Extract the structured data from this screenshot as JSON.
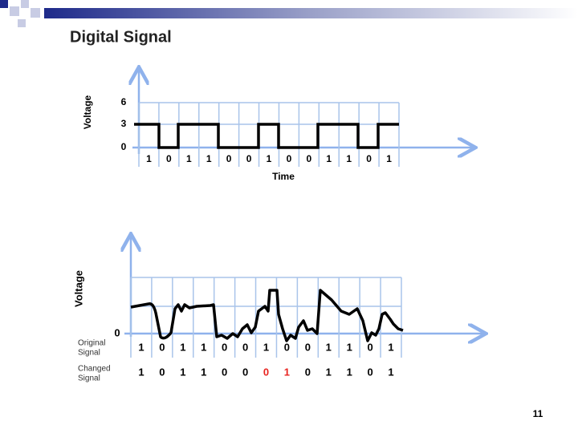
{
  "title": "Digital Signal",
  "top_diagram": {
    "y_axis_label": "Voltage",
    "ticks": [
      "6",
      "3",
      "0"
    ],
    "bits": [
      "1",
      "0",
      "1",
      "1",
      "0",
      "0",
      "1",
      "0",
      "0",
      "1",
      "1",
      "0",
      "1"
    ],
    "x_axis_label": "Time"
  },
  "bottom_diagram": {
    "y_axis_label": "Voltage",
    "tick": "0",
    "original_label": [
      "Original",
      "Signal"
    ],
    "original_bits": [
      "1",
      "0",
      "1",
      "1",
      "0",
      "0",
      "1",
      "0",
      "0",
      "1",
      "1",
      "0",
      "1"
    ],
    "changed_label": [
      "Changed",
      "Signal"
    ],
    "changed_bits": [
      "1",
      "0",
      "1",
      "1",
      "0",
      "0",
      "0",
      "1",
      "0",
      "1",
      "1",
      "0",
      "1"
    ],
    "highlighted_bits": [
      6,
      7
    ],
    "highlight_color": "#e8231f"
  },
  "page_number": "11"
}
